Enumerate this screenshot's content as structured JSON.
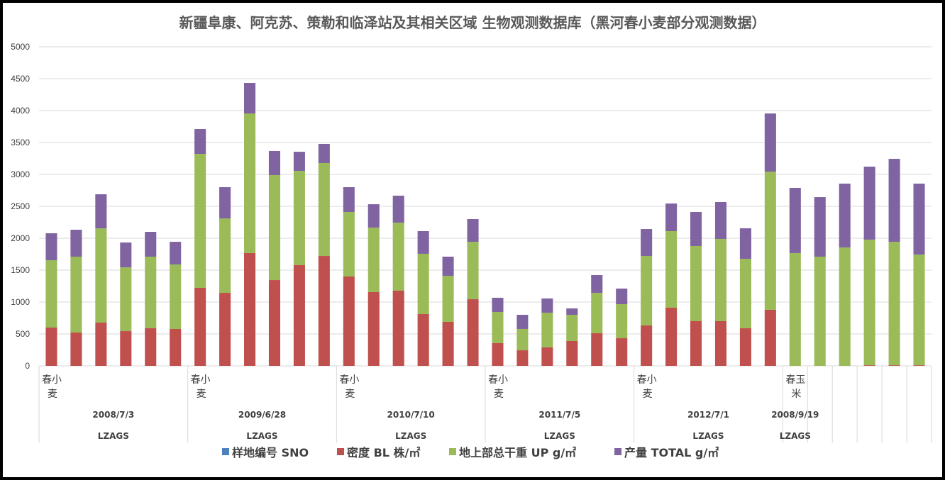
{
  "chart_data": {
    "type": "bar",
    "stacked": true,
    "title": "新疆阜康、阿克苏、策勒和临泽站及其相关区域 生物观测数据库（黑河春小麦部分观测数据）",
    "xlabel": "",
    "ylabel": "",
    "ylim": [
      0,
      5000
    ],
    "yticks": [
      0,
      500,
      1000,
      1500,
      2000,
      2500,
      3000,
      3500,
      4000,
      4500,
      5000
    ],
    "grid": true,
    "legend_position": "bottom",
    "groups": [
      {
        "crop": [
          "春小",
          "麦"
        ],
        "date": "2008/7/3",
        "site": "LZAGS",
        "count": 6
      },
      {
        "crop": [
          "春小",
          "麦"
        ],
        "date": "2009/6/28",
        "site": "LZAGS",
        "count": 6
      },
      {
        "crop": [
          "春小",
          "麦"
        ],
        "date": "2010/7/10",
        "site": "LZAGS",
        "count": 6
      },
      {
        "crop": [
          "春小",
          "麦"
        ],
        "date": "2011/7/5",
        "site": "LZAGS",
        "count": 6
      },
      {
        "crop": [
          "春小",
          "麦"
        ],
        "date": "2012/7/1",
        "site": "LZAGS",
        "count": 6
      },
      {
        "crop": [
          "春玉",
          "米"
        ],
        "date": "2008/9/19",
        "site": "LZAGS",
        "count": 1
      },
      {
        "crop": [],
        "date": "",
        "site": "",
        "count": 1
      },
      {
        "crop": [],
        "date": "",
        "site": "",
        "count": 1
      },
      {
        "crop": [],
        "date": "",
        "site": "",
        "count": 1
      },
      {
        "crop": [],
        "date": "",
        "site": "",
        "count": 1
      },
      {
        "crop": [],
        "date": "",
        "site": "",
        "count": 1
      }
    ],
    "series": [
      {
        "name": "样地编号 SNO",
        "color": "#4f81bd",
        "values": []
      },
      {
        "name": "密度 BL 株/㎡",
        "color": "#c0504d",
        "values": [
          600,
          522,
          678,
          544,
          589,
          578,
          1222,
          1144,
          1767,
          1344,
          1578,
          1722,
          1400,
          1156,
          1178,
          811,
          689,
          1044,
          356,
          244,
          289,
          389,
          511,
          433,
          633,
          911,
          700,
          700,
          589,
          878,
          0,
          0,
          0,
          10,
          10,
          10
        ]
      },
      {
        "name": "地上部总干重 UP g/㎡",
        "color": "#9bbb59",
        "values": [
          1055,
          1189,
          1477,
          1000,
          1122,
          1011,
          2100,
          1167,
          2188,
          1645,
          1477,
          1456,
          1011,
          1011,
          1066,
          945,
          722,
          900,
          488,
          334,
          544,
          411,
          633,
          534,
          1089,
          1200,
          1178,
          1289,
          1089,
          2166,
          1767,
          1711,
          1856,
          1968,
          1934,
          1734
        ]
      },
      {
        "name": "产量 TOTAL g/㎡",
        "color": "#8064a2",
        "values": [
          423,
          422,
          534,
          389,
          389,
          355,
          389,
          489,
          478,
          378,
          300,
          300,
          389,
          366,
          423,
          355,
          300,
          356,
          223,
          222,
          223,
          100,
          278,
          244,
          422,
          433,
          533,
          578,
          478,
          911,
          1022,
          933,
          1000,
          1144,
          1300,
          1112
        ]
      }
    ]
  }
}
